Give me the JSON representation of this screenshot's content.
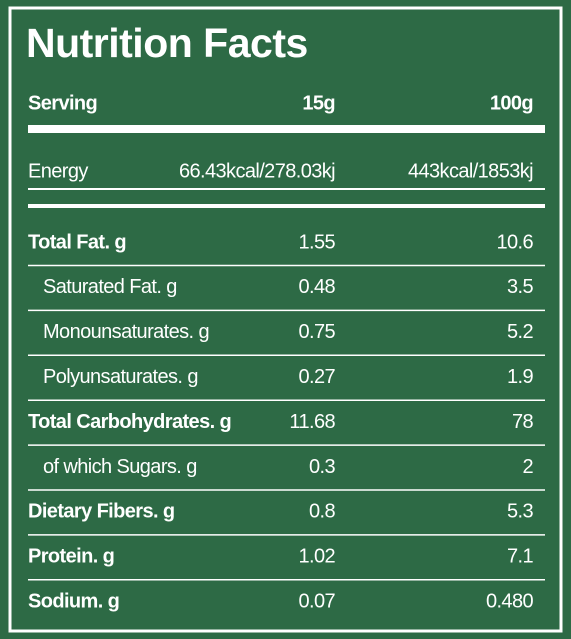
{
  "header": {
    "title": "Nutrition Facts",
    "columns": [
      "Serving",
      "15g",
      "100g"
    ]
  },
  "energy": {
    "label": "Energy",
    "per_serving": "66.43kcal/278.03kj",
    "per_100g": "443kcal/1853kj"
  },
  "table": {
    "rows": [
      {
        "label": "Total Fat. g",
        "per_serving": "1.55",
        "per_100g": "10.6",
        "bold": true,
        "indent": false
      },
      {
        "label": "Saturated Fat. g",
        "per_serving": "0.48",
        "per_100g": "3.5",
        "bold": false,
        "indent": true
      },
      {
        "label": "Monounsaturates. g",
        "per_serving": "0.75",
        "per_100g": "5.2",
        "bold": false,
        "indent": true
      },
      {
        "label": "Polyunsaturates. g",
        "per_serving": "0.27",
        "per_100g": "1.9",
        "bold": false,
        "indent": true
      },
      {
        "label": "Total Carbohydrates. g",
        "per_serving": "11.68",
        "per_100g": "78",
        "bold": true,
        "indent": false
      },
      {
        "label": "of which Sugars. g",
        "per_serving": "0.3",
        "per_100g": "2",
        "bold": false,
        "indent": true
      },
      {
        "label": "Dietary Fibers. g",
        "per_serving": "0.8",
        "per_100g": "5.3",
        "bold": true,
        "indent": false
      },
      {
        "label": "Protein. g",
        "per_serving": "1.02",
        "per_100g": "7.1",
        "bold": true,
        "indent": false
      },
      {
        "label": "Sodium. g",
        "per_serving": "0.07",
        "per_100g": "0.480",
        "bold": true,
        "indent": false
      }
    ]
  }
}
